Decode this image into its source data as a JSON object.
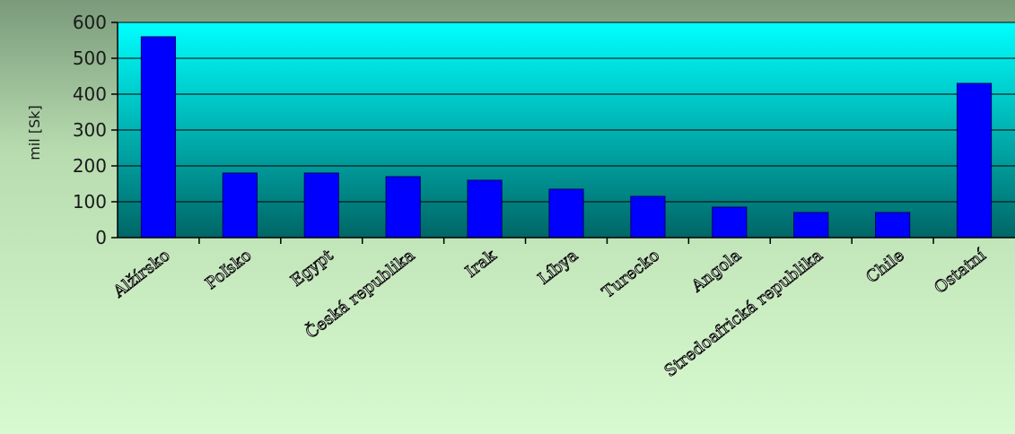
{
  "chart_data": {
    "type": "bar",
    "title": "",
    "xlabel": "",
    "ylabel": "mil [Sk]",
    "ylim": [
      0,
      600
    ],
    "yticks": [
      0,
      100,
      200,
      300,
      400,
      500,
      600
    ],
    "grid": true,
    "legend": "none",
    "categories": [
      "Alžírsko",
      "Poľsko",
      "Egypt",
      "Česká republika",
      "Irak",
      "Líbya",
      "Turecko",
      "Angola",
      "Stredoafrická republika",
      "Chile",
      "Ostatní"
    ],
    "series": [
      {
        "values": [
          560,
          180,
          180,
          170,
          160,
          135,
          115,
          85,
          70,
          70,
          430
        ]
      }
    ],
    "colors": {
      "bar_fill": "#0000FF",
      "bar_stroke": "#000066",
      "plot_bg_top": "#00FFFF",
      "plot_bg_bottom": "#006666",
      "page_bg_top": "#7A9A7A",
      "page_bg_bottom": "#D8FAD0",
      "grid": "#000000"
    }
  }
}
